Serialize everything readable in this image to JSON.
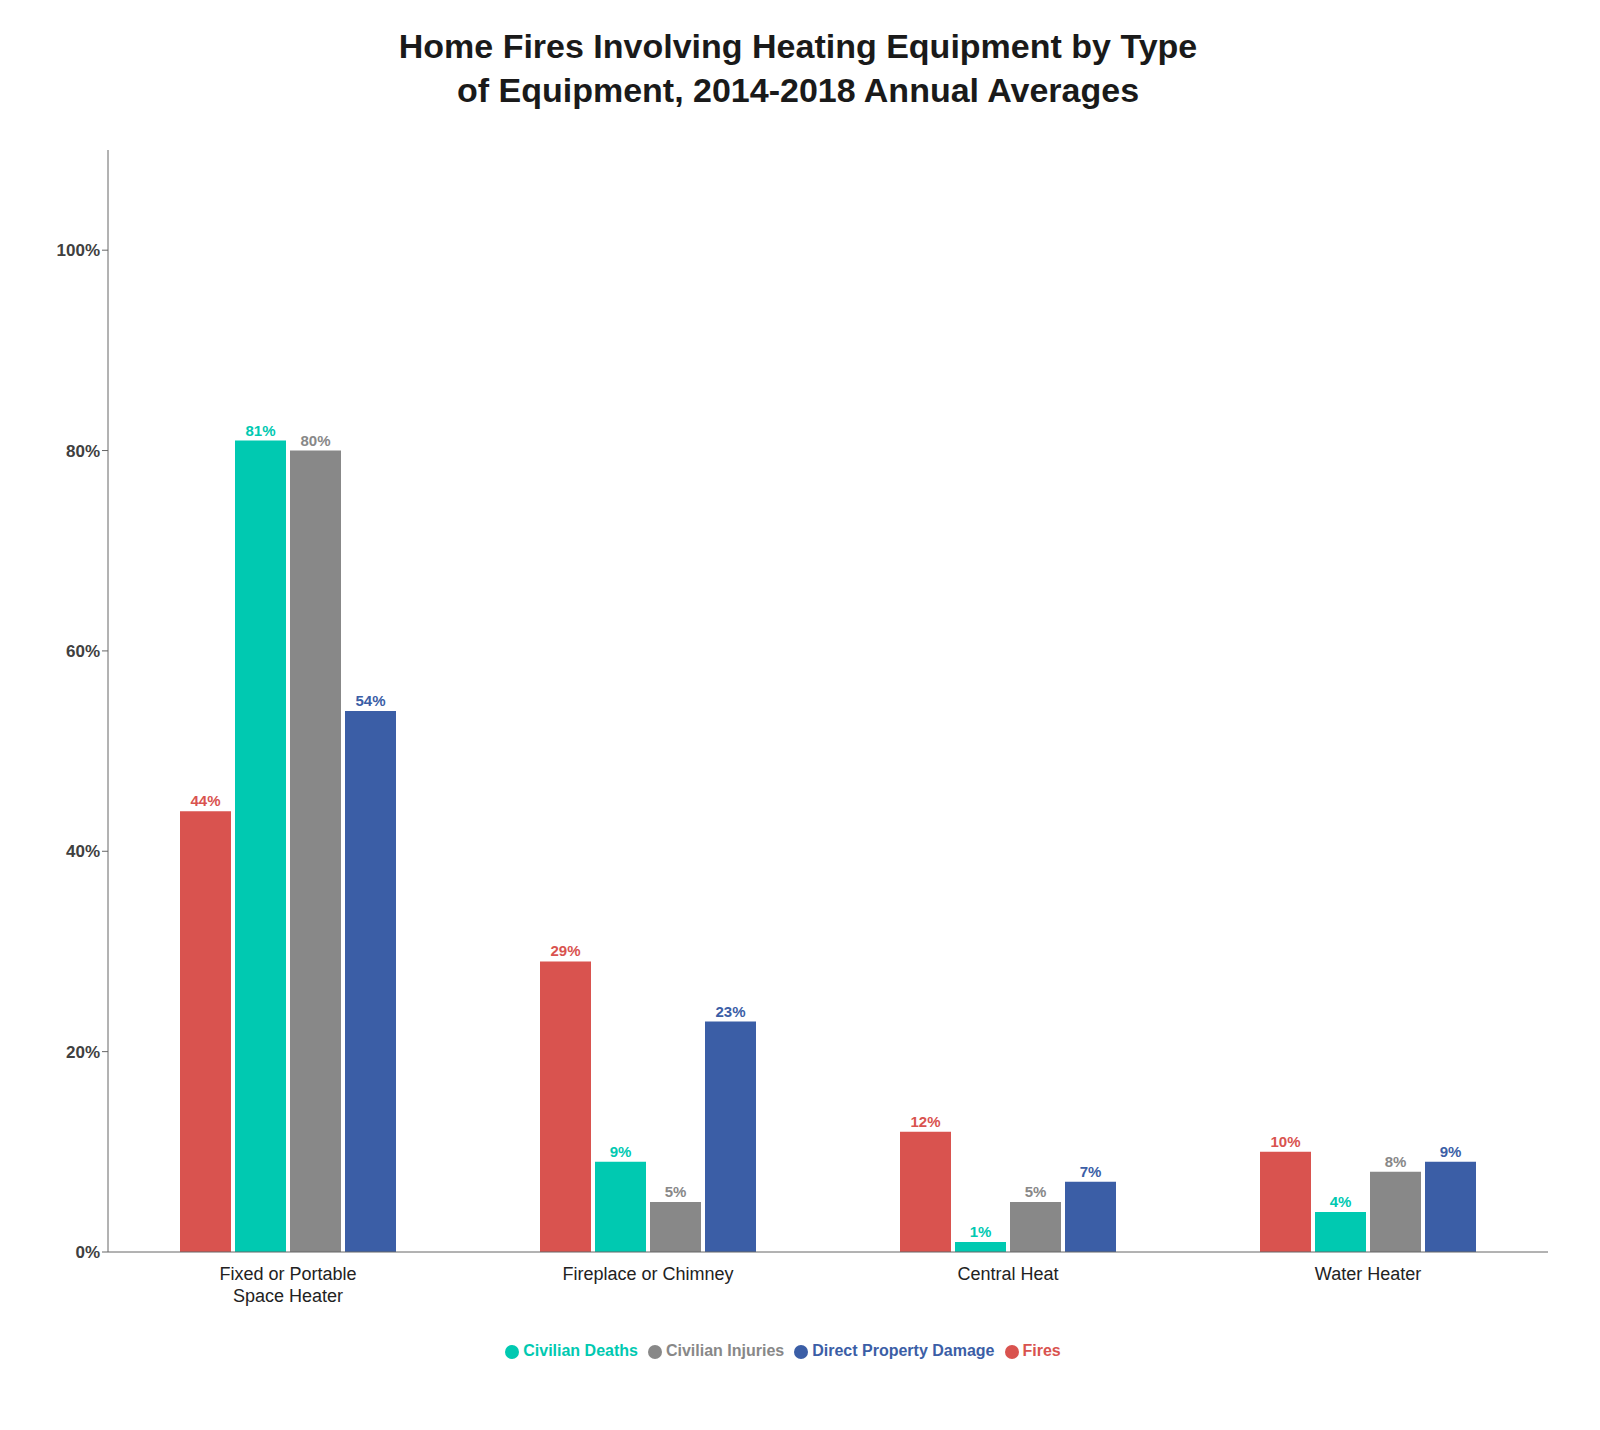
{
  "chart_data": {
    "type": "bar",
    "title": "Home Fires Involving Heating Equipment by Type\nof Equipment, 2014-2018 Annual Averages",
    "categories": [
      "Fixed or Portable\nSpace Heater",
      "Fireplace or Chimney",
      "Central Heat",
      "Water Heater"
    ],
    "series": [
      {
        "name": "Fires",
        "color": "#d9534f",
        "values": [
          44,
          29,
          12,
          10
        ],
        "value_labels": [
          "44%",
          "29%",
          "12%",
          "10%"
        ]
      },
      {
        "name": "Civilian Deaths",
        "color": "#00c9b1",
        "values": [
          81,
          9,
          1,
          4
        ],
        "value_labels": [
          "81%",
          "9%",
          "1%",
          "4%"
        ]
      },
      {
        "name": "Civilian Injuries",
        "color": "#888888",
        "values": [
          80,
          5,
          5,
          8
        ],
        "value_labels": [
          "80%",
          "5%",
          "5%",
          "8%"
        ]
      },
      {
        "name": "Direct Property Damage",
        "color": "#3b5ea6",
        "values": [
          54,
          23,
          7,
          9
        ],
        "value_labels": [
          "54%",
          "23%",
          "7%",
          "9%"
        ]
      }
    ],
    "ylim": [
      0,
      110
    ],
    "yticks": [
      {
        "value": 0,
        "label": "0%"
      },
      {
        "value": 20,
        "label": "20%"
      },
      {
        "value": 40,
        "label": "40%"
      },
      {
        "value": 60,
        "label": "60%"
      },
      {
        "value": 80,
        "label": "80%"
      },
      {
        "value": 100,
        "label": "100%"
      }
    ],
    "grid": false,
    "legend": "bottom",
    "data_labels": true
  }
}
